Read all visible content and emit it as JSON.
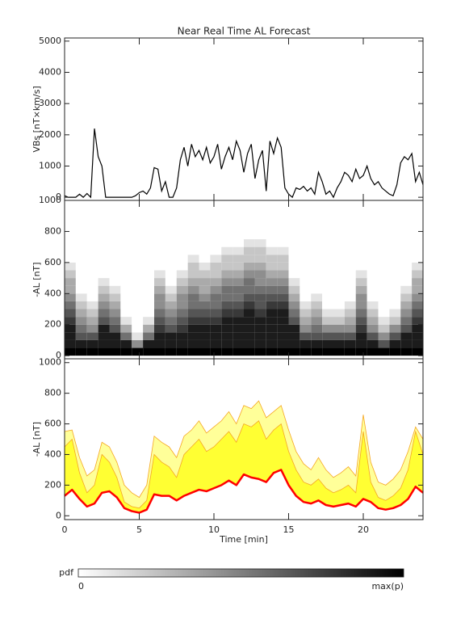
{
  "chart_data": [
    {
      "type": "line",
      "title": "Near Real Time AL Forecast",
      "ylabel": "VBs [nT×km/s]",
      "xlim": [
        0,
        24
      ],
      "xticks": [
        0,
        5,
        10,
        15,
        20
      ],
      "ylim": [
        -100,
        5100
      ],
      "yticks": [
        0,
        1000,
        2000,
        3000,
        4000,
        5000
      ],
      "x": [
        0,
        0.25,
        0.5,
        0.75,
        1,
        1.25,
        1.5,
        1.75,
        2,
        2.25,
        2.5,
        2.75,
        3,
        3.25,
        3.5,
        3.75,
        4,
        4.25,
        4.5,
        4.75,
        5,
        5.25,
        5.5,
        5.75,
        6,
        6.25,
        6.5,
        6.75,
        7,
        7.25,
        7.5,
        7.75,
        8,
        8.25,
        8.5,
        8.75,
        9,
        9.25,
        9.5,
        9.75,
        10,
        10.25,
        10.5,
        10.75,
        11,
        11.25,
        11.5,
        11.75,
        12,
        12.25,
        12.5,
        12.75,
        13,
        13.25,
        13.5,
        13.75,
        14,
        14.25,
        14.5,
        14.75,
        15,
        15.25,
        15.5,
        15.75,
        16,
        16.25,
        16.5,
        16.75,
        17,
        17.25,
        17.5,
        17.75,
        18,
        18.25,
        18.5,
        18.75,
        19,
        19.25,
        19.5,
        19.75,
        20,
        20.25,
        20.5,
        20.75,
        21,
        21.25,
        21.5,
        21.75,
        22,
        22.25,
        22.5,
        22.75,
        23,
        23.25,
        23.5,
        23.75,
        24
      ],
      "series": [
        {
          "color": "#000000",
          "values": [
            50,
            0,
            0,
            0,
            100,
            0,
            120,
            0,
            2200,
            1300,
            1000,
            0,
            0,
            0,
            0,
            0,
            0,
            0,
            0,
            50,
            150,
            200,
            100,
            300,
            950,
            900,
            200,
            500,
            0,
            0,
            300,
            1200,
            1600,
            1000,
            1700,
            1300,
            1500,
            1200,
            1600,
            1100,
            1300,
            1700,
            900,
            1300,
            1600,
            1200,
            1800,
            1500,
            800,
            1400,
            1700,
            600,
            1200,
            1500,
            200,
            1800,
            1400,
            1900,
            1600,
            300,
            100,
            0,
            300,
            250,
            350,
            200,
            300,
            100,
            800,
            500,
            100,
            200,
            0,
            300,
            500,
            800,
            700,
            500,
            900,
            600,
            700,
            1000,
            600,
            400,
            500,
            300,
            200,
            100,
            50,
            400,
            1100,
            1300,
            1200,
            1400,
            500,
            800,
            400
          ]
        }
      ]
    },
    {
      "type": "heatmap",
      "ylabel": "-AL [nT]",
      "xlim": [
        0,
        24
      ],
      "xticks": [
        0,
        5,
        10,
        15,
        20
      ],
      "ylim": [
        -20,
        1000
      ],
      "yticks": [
        0,
        200,
        400,
        600,
        800,
        1000
      ],
      "colorbar_label": "pdf",
      "zlim": [
        0,
        9
      ],
      "zticks": [
        0,
        {
          "value": 9,
          "label": "max(p)"
        }
      ],
      "x_edges": [
        0,
        0.75,
        1.5,
        2.25,
        3,
        3.75,
        4.5,
        5.25,
        6,
        6.75,
        7.5,
        8.25,
        9,
        9.75,
        10.5,
        11.25,
        12,
        12.75,
        13.5,
        14.25,
        15,
        15.75,
        16.5,
        17.25,
        18,
        18.75,
        19.5,
        20.25,
        21,
        21.75,
        22.5,
        23.25,
        24
      ],
      "y_edges": [
        0,
        50,
        100,
        150,
        200,
        250,
        300,
        350,
        400,
        450,
        500,
        550,
        600,
        650,
        700,
        750,
        800
      ],
      "z": [
        [
          9,
          8,
          8,
          8,
          7,
          6,
          5,
          4,
          3,
          3,
          2,
          1,
          0,
          0,
          0,
          0
        ],
        [
          9,
          8,
          6,
          5,
          4,
          3,
          2,
          1,
          0,
          0,
          0,
          0,
          0,
          0,
          0,
          0
        ],
        [
          9,
          8,
          6,
          4,
          3,
          2,
          1,
          0,
          0,
          0,
          0,
          0,
          0,
          0,
          0,
          0
        ],
        [
          9,
          8,
          8,
          8,
          6,
          5,
          4,
          3,
          2,
          1,
          0,
          0,
          0,
          0,
          0,
          0
        ],
        [
          9,
          8,
          8,
          6,
          5,
          4,
          3,
          2,
          1,
          0,
          0,
          0,
          0,
          0,
          0,
          0
        ],
        [
          9,
          8,
          5,
          3,
          1,
          0,
          0,
          0,
          0,
          0,
          0,
          0,
          0,
          0,
          0,
          0
        ],
        [
          9,
          4,
          1,
          0,
          0,
          0,
          0,
          0,
          0,
          0,
          0,
          0,
          0,
          0,
          0,
          0
        ],
        [
          9,
          8,
          5,
          3,
          1,
          0,
          0,
          0,
          0,
          0,
          0,
          0,
          0,
          0,
          0,
          0
        ],
        [
          9,
          8,
          8,
          7,
          6,
          5,
          4,
          4,
          3,
          2,
          1,
          0,
          0,
          0,
          0,
          0
        ],
        [
          9,
          8,
          8,
          6,
          5,
          4,
          3,
          2,
          1,
          0,
          0,
          0,
          0,
          0,
          0,
          0
        ],
        [
          9,
          8,
          8,
          7,
          6,
          5,
          4,
          4,
          3,
          2,
          1,
          0,
          0,
          0,
          0,
          0
        ],
        [
          9,
          8,
          8,
          8,
          7,
          6,
          5,
          5,
          4,
          3,
          2,
          2,
          1,
          0,
          0,
          0
        ],
        [
          9,
          8,
          8,
          8,
          7,
          6,
          5,
          4,
          3,
          3,
          2,
          1,
          0,
          0,
          0,
          0
        ],
        [
          9,
          8,
          8,
          8,
          7,
          6,
          5,
          5,
          4,
          3,
          2,
          2,
          1,
          0,
          0,
          0
        ],
        [
          9,
          8,
          8,
          8,
          8,
          7,
          6,
          5,
          5,
          4,
          3,
          2,
          2,
          1,
          0,
          0
        ],
        [
          9,
          8,
          8,
          8,
          8,
          7,
          6,
          5,
          5,
          4,
          3,
          2,
          2,
          1,
          0,
          0
        ],
        [
          9,
          8,
          8,
          8,
          8,
          8,
          7,
          6,
          5,
          5,
          4,
          3,
          2,
          2,
          1,
          0
        ],
        [
          9,
          8,
          8,
          8,
          8,
          7,
          6,
          6,
          5,
          4,
          4,
          3,
          2,
          2,
          1,
          0
        ],
        [
          9,
          8,
          8,
          8,
          8,
          8,
          7,
          6,
          5,
          4,
          3,
          2,
          2,
          1,
          0,
          0
        ],
        [
          9,
          8,
          8,
          8,
          8,
          8,
          7,
          6,
          5,
          4,
          3,
          2,
          2,
          1,
          0,
          0
        ],
        [
          9,
          8,
          8,
          8,
          6,
          5,
          4,
          3,
          2,
          1,
          0,
          0,
          0,
          0,
          0,
          0
        ],
        [
          9,
          8,
          6,
          4,
          3,
          2,
          1,
          0,
          0,
          0,
          0,
          0,
          0,
          0,
          0,
          0
        ],
        [
          9,
          8,
          6,
          5,
          4,
          3,
          2,
          1,
          0,
          0,
          0,
          0,
          0,
          0,
          0,
          0
        ],
        [
          9,
          8,
          6,
          4,
          2,
          1,
          0,
          0,
          0,
          0,
          0,
          0,
          0,
          0,
          0,
          0
        ],
        [
          9,
          8,
          6,
          4,
          2,
          1,
          0,
          0,
          0,
          0,
          0,
          0,
          0,
          0,
          0,
          0
        ],
        [
          9,
          8,
          6,
          4,
          3,
          2,
          1,
          0,
          0,
          0,
          0,
          0,
          0,
          0,
          0,
          0
        ],
        [
          9,
          8,
          8,
          7,
          6,
          5,
          4,
          4,
          3,
          2,
          1,
          0,
          0,
          0,
          0,
          0
        ],
        [
          9,
          8,
          6,
          4,
          3,
          2,
          1,
          0,
          0,
          0,
          0,
          0,
          0,
          0,
          0,
          0
        ],
        [
          9,
          6,
          4,
          2,
          1,
          0,
          0,
          0,
          0,
          0,
          0,
          0,
          0,
          0,
          0,
          0
        ],
        [
          9,
          8,
          6,
          4,
          2,
          1,
          0,
          0,
          0,
          0,
          0,
          0,
          0,
          0,
          0,
          0
        ],
        [
          9,
          8,
          8,
          6,
          5,
          4,
          3,
          2,
          1,
          0,
          0,
          0,
          0,
          0,
          0,
          0
        ],
        [
          9,
          8,
          8,
          8,
          7,
          6,
          5,
          4,
          3,
          3,
          2,
          1,
          0,
          0,
          0,
          0
        ]
      ]
    },
    {
      "type": "band",
      "ylabel": "-AL [nT]",
      "xlabel": "Time [min]",
      "xlim": [
        0,
        24
      ],
      "xticks": [
        0,
        5,
        10,
        15,
        20
      ],
      "ylim": [
        -25,
        1025
      ],
      "yticks": [
        0,
        200,
        400,
        600,
        800,
        1000
      ],
      "edge_color": "#f5a623",
      "x": [
        0,
        0.5,
        1,
        1.5,
        2,
        2.5,
        3,
        3.5,
        4,
        4.5,
        5,
        5.5,
        6,
        6.5,
        7,
        7.5,
        8,
        8.5,
        9,
        9.5,
        10,
        10.5,
        11,
        11.5,
        12,
        12.5,
        13,
        13.5,
        14,
        14.5,
        15,
        15.5,
        16,
        16.5,
        17,
        17.5,
        18,
        18.5,
        19,
        19.5,
        20,
        20.5,
        21,
        21.5,
        22,
        22.5,
        23,
        23.5,
        24
      ],
      "series": [
        {
          "color": "#ffff99",
          "values": [
            550,
            560,
            380,
            260,
            300,
            480,
            450,
            350,
            200,
            150,
            120,
            200,
            520,
            480,
            450,
            380,
            520,
            560,
            620,
            540,
            580,
            620,
            680,
            600,
            720,
            700,
            750,
            640,
            680,
            720,
            560,
            420,
            340,
            300,
            380,
            300,
            250,
            280,
            320,
            260,
            660,
            350,
            220,
            200,
            240,
            300,
            420,
            580,
            500
          ]
        },
        {
          "color": "#ffff33",
          "values": [
            450,
            500,
            280,
            150,
            200,
            400,
            350,
            250,
            90,
            60,
            50,
            100,
            400,
            350,
            320,
            250,
            400,
            450,
            500,
            420,
            450,
            500,
            550,
            480,
            600,
            580,
            620,
            500,
            560,
            600,
            420,
            300,
            220,
            200,
            240,
            180,
            150,
            170,
            200,
            150,
            550,
            220,
            120,
            100,
            130,
            180,
            300,
            550,
            400
          ]
        },
        {
          "color": "#ff0000",
          "values": [
            130,
            170,
            110,
            60,
            80,
            150,
            160,
            120,
            50,
            30,
            20,
            40,
            140,
            130,
            130,
            100,
            130,
            150,
            170,
            160,
            180,
            200,
            230,
            200,
            270,
            250,
            240,
            220,
            280,
            300,
            200,
            130,
            90,
            80,
            100,
            70,
            60,
            70,
            80,
            60,
            110,
            90,
            50,
            40,
            50,
            70,
            110,
            190,
            150
          ]
        }
      ]
    }
  ]
}
